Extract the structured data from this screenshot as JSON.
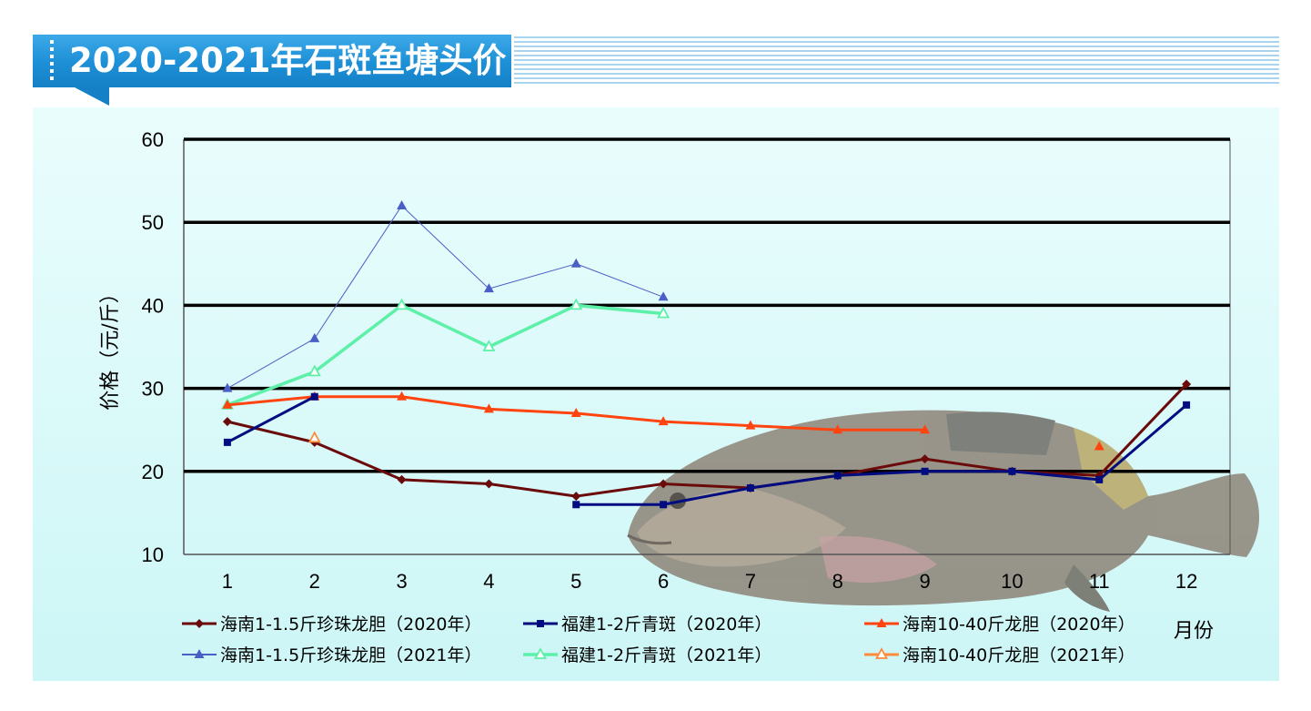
{
  "header": {
    "title": "2020-2021年石斑鱼塘头价"
  },
  "chart_data": {
    "type": "line",
    "title": "2020-2021年石斑鱼塘头价",
    "xlabel": "月份",
    "ylabel": "价格（元/斤）",
    "categories": [
      "1",
      "2",
      "3",
      "4",
      "5",
      "6",
      "7",
      "8",
      "9",
      "10",
      "11",
      "12"
    ],
    "ylim": [
      10,
      60
    ],
    "yticks": [
      "10",
      "20",
      "30",
      "40",
      "50",
      "60"
    ],
    "grid": "horizontal",
    "legend_position": "bottom",
    "series": [
      {
        "name": "海南1-1.5斤珍珠龙胆（2020年）",
        "color": "#6b0a0a",
        "marker": "diamond",
        "width": 3,
        "values": [
          26,
          23.5,
          19,
          18.5,
          17,
          18.5,
          18,
          19.5,
          21.5,
          20,
          19.5,
          30.5
        ]
      },
      {
        "name": "福建1-2斤青斑（2020年）",
        "color": "#000c80",
        "marker": "square",
        "width": 3,
        "values": [
          23.5,
          29,
          null,
          null,
          16,
          16,
          18,
          19.5,
          20,
          20,
          19,
          28
        ]
      },
      {
        "name": "海南10-40斤龙胆（2020年）",
        "color": "#ff4410",
        "marker": "triangle",
        "width": 3,
        "values": [
          28,
          29,
          29,
          27.5,
          27,
          26,
          25.5,
          25,
          25,
          null,
          23,
          null
        ]
      },
      {
        "name": "海南1-1.5斤珍珠龙胆（2021年）",
        "color": "#4a5fc6",
        "marker": "triangle",
        "width": 1,
        "values": [
          30,
          36,
          52,
          42,
          45,
          41,
          null,
          null,
          null,
          null,
          null,
          null
        ]
      },
      {
        "name": "福建1-2斤青斑（2021年）",
        "color": "#5cf0a8",
        "marker": "triangle-open",
        "width": 3.5,
        "values": [
          28,
          32,
          40,
          35,
          40,
          39,
          null,
          null,
          null,
          null,
          null,
          null
        ]
      },
      {
        "name": "海南10-40斤龙胆（2021年）",
        "color": "#ff8a3a",
        "marker": "triangle-open",
        "width": 3,
        "values": [
          null,
          24,
          null,
          null,
          null,
          null,
          null,
          null,
          null,
          null,
          null,
          null
        ]
      }
    ]
  }
}
